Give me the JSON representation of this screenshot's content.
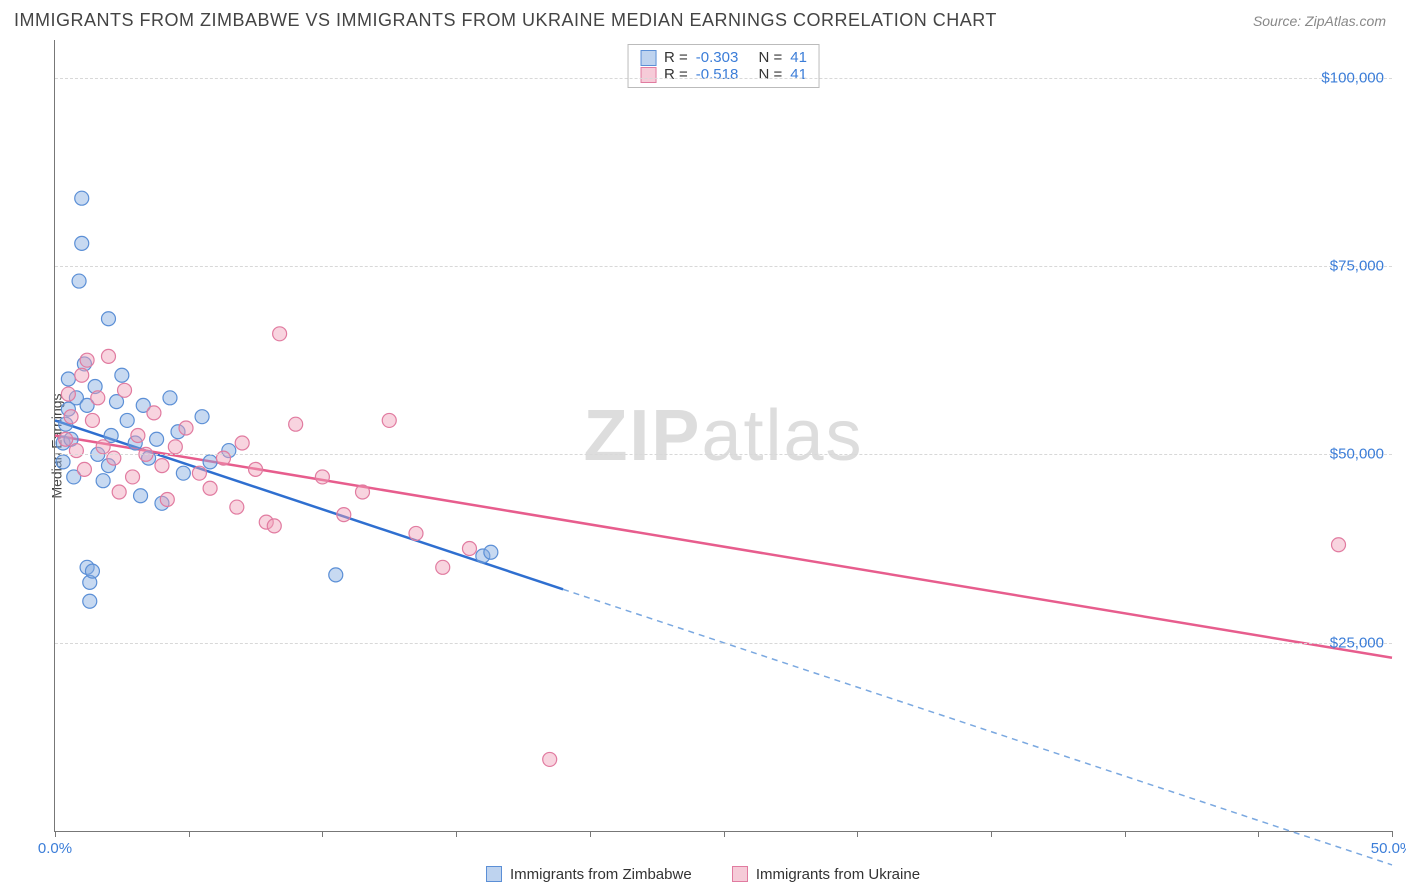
{
  "title": "IMMIGRANTS FROM ZIMBABWE VS IMMIGRANTS FROM UKRAINE MEDIAN EARNINGS CORRELATION CHART",
  "source": "Source: ZipAtlas.com",
  "ylabel": "Median Earnings",
  "watermark_bold": "ZIP",
  "watermark_rest": "atlas",
  "chart": {
    "type": "scatter",
    "xlim": [
      0,
      50
    ],
    "ylim": [
      0,
      105000
    ],
    "x_unit": "%",
    "y_unit": "$",
    "xtick_labels": [
      {
        "x": 0,
        "label": "0.0%"
      },
      {
        "x": 50,
        "label": "50.0%"
      }
    ],
    "xticks_minor": [
      5,
      10,
      15,
      20,
      25,
      30,
      35,
      40,
      45
    ],
    "ytick_labels": [
      {
        "y": 25000,
        "label": "$25,000"
      },
      {
        "y": 50000,
        "label": "$50,000"
      },
      {
        "y": 75000,
        "label": "$75,000"
      },
      {
        "y": 100000,
        "label": "$100,000"
      }
    ],
    "grid_color": "#d8d8d8",
    "marker_radius": 7,
    "series": [
      {
        "name": "Immigrants from Zimbabwe",
        "key": "blue",
        "color_fill": "rgba(130,170,225,0.45)",
        "color_stroke": "#5b8fd6",
        "R": "-0.303",
        "N": "41",
        "regression": {
          "y_at_x0": 54500,
          "y_at_x50": -4500,
          "solid_until_x": 19,
          "color_solid": "#2f6fd0",
          "color_dash": "#7aa8e0"
        },
        "points": [
          {
            "x": 0.3,
            "y": 51500
          },
          {
            "x": 0.3,
            "y": 49000
          },
          {
            "x": 0.4,
            "y": 54000
          },
          {
            "x": 0.5,
            "y": 60000
          },
          {
            "x": 0.5,
            "y": 56000
          },
          {
            "x": 0.6,
            "y": 52000
          },
          {
            "x": 0.7,
            "y": 47000
          },
          {
            "x": 0.8,
            "y": 57500
          },
          {
            "x": 0.9,
            "y": 73000
          },
          {
            "x": 1.0,
            "y": 84000
          },
          {
            "x": 1.0,
            "y": 78000
          },
          {
            "x": 1.1,
            "y": 62000
          },
          {
            "x": 1.2,
            "y": 56500
          },
          {
            "x": 1.2,
            "y": 35000
          },
          {
            "x": 1.3,
            "y": 33000
          },
          {
            "x": 1.3,
            "y": 30500
          },
          {
            "x": 1.4,
            "y": 34500
          },
          {
            "x": 1.5,
            "y": 59000
          },
          {
            "x": 1.6,
            "y": 50000
          },
          {
            "x": 1.8,
            "y": 46500
          },
          {
            "x": 2.0,
            "y": 68000
          },
          {
            "x": 2.0,
            "y": 48500
          },
          {
            "x": 2.1,
            "y": 52500
          },
          {
            "x": 2.3,
            "y": 57000
          },
          {
            "x": 2.5,
            "y": 60500
          },
          {
            "x": 2.7,
            "y": 54500
          },
          {
            "x": 3.0,
            "y": 51500
          },
          {
            "x": 3.2,
            "y": 44500
          },
          {
            "x": 3.3,
            "y": 56500
          },
          {
            "x": 3.5,
            "y": 49500
          },
          {
            "x": 3.8,
            "y": 52000
          },
          {
            "x": 4.0,
            "y": 43500
          },
          {
            "x": 4.3,
            "y": 57500
          },
          {
            "x": 4.6,
            "y": 53000
          },
          {
            "x": 4.8,
            "y": 47500
          },
          {
            "x": 5.5,
            "y": 55000
          },
          {
            "x": 5.8,
            "y": 49000
          },
          {
            "x": 6.5,
            "y": 50500
          },
          {
            "x": 10.5,
            "y": 34000
          },
          {
            "x": 16.0,
            "y": 36500
          },
          {
            "x": 16.3,
            "y": 37000
          }
        ]
      },
      {
        "name": "Immigrants from Ukraine",
        "key": "pink",
        "color_fill": "rgba(240,160,185,0.45)",
        "color_stroke": "#e17ba0",
        "R": "-0.518",
        "N": "41",
        "regression": {
          "y_at_x0": 52500,
          "y_at_x50": 23000,
          "color": "#e75d8d"
        },
        "points": [
          {
            "x": 0.4,
            "y": 52000
          },
          {
            "x": 0.5,
            "y": 58000
          },
          {
            "x": 0.6,
            "y": 55000
          },
          {
            "x": 0.8,
            "y": 50500
          },
          {
            "x": 1.0,
            "y": 60500
          },
          {
            "x": 1.1,
            "y": 48000
          },
          {
            "x": 1.2,
            "y": 62500
          },
          {
            "x": 1.4,
            "y": 54500
          },
          {
            "x": 1.6,
            "y": 57500
          },
          {
            "x": 1.8,
            "y": 51000
          },
          {
            "x": 2.0,
            "y": 63000
          },
          {
            "x": 2.2,
            "y": 49500
          },
          {
            "x": 2.4,
            "y": 45000
          },
          {
            "x": 2.6,
            "y": 58500
          },
          {
            "x": 2.9,
            "y": 47000
          },
          {
            "x": 3.1,
            "y": 52500
          },
          {
            "x": 3.4,
            "y": 50000
          },
          {
            "x": 3.7,
            "y": 55500
          },
          {
            "x": 4.0,
            "y": 48500
          },
          {
            "x": 4.2,
            "y": 44000
          },
          {
            "x": 4.5,
            "y": 51000
          },
          {
            "x": 4.9,
            "y": 53500
          },
          {
            "x": 5.4,
            "y": 47500
          },
          {
            "x": 5.8,
            "y": 45500
          },
          {
            "x": 6.3,
            "y": 49500
          },
          {
            "x": 6.8,
            "y": 43000
          },
          {
            "x": 7.5,
            "y": 48000
          },
          {
            "x": 7.9,
            "y": 41000
          },
          {
            "x": 8.2,
            "y": 40500
          },
          {
            "x": 8.4,
            "y": 66000
          },
          {
            "x": 9.0,
            "y": 54000
          },
          {
            "x": 10.0,
            "y": 47000
          },
          {
            "x": 10.8,
            "y": 42000
          },
          {
            "x": 11.5,
            "y": 45000
          },
          {
            "x": 12.5,
            "y": 54500
          },
          {
            "x": 13.5,
            "y": 39500
          },
          {
            "x": 14.5,
            "y": 35000
          },
          {
            "x": 15.5,
            "y": 37500
          },
          {
            "x": 18.5,
            "y": 9500
          },
          {
            "x": 48.0,
            "y": 38000
          },
          {
            "x": 7.0,
            "y": 51500
          }
        ]
      }
    ],
    "legend_top_labels": {
      "R": "R =",
      "N": "N ="
    },
    "legend_bottom": [
      {
        "key": "blue",
        "label": "Immigrants from Zimbabwe"
      },
      {
        "key": "pink",
        "label": "Immigrants from Ukraine"
      }
    ]
  }
}
